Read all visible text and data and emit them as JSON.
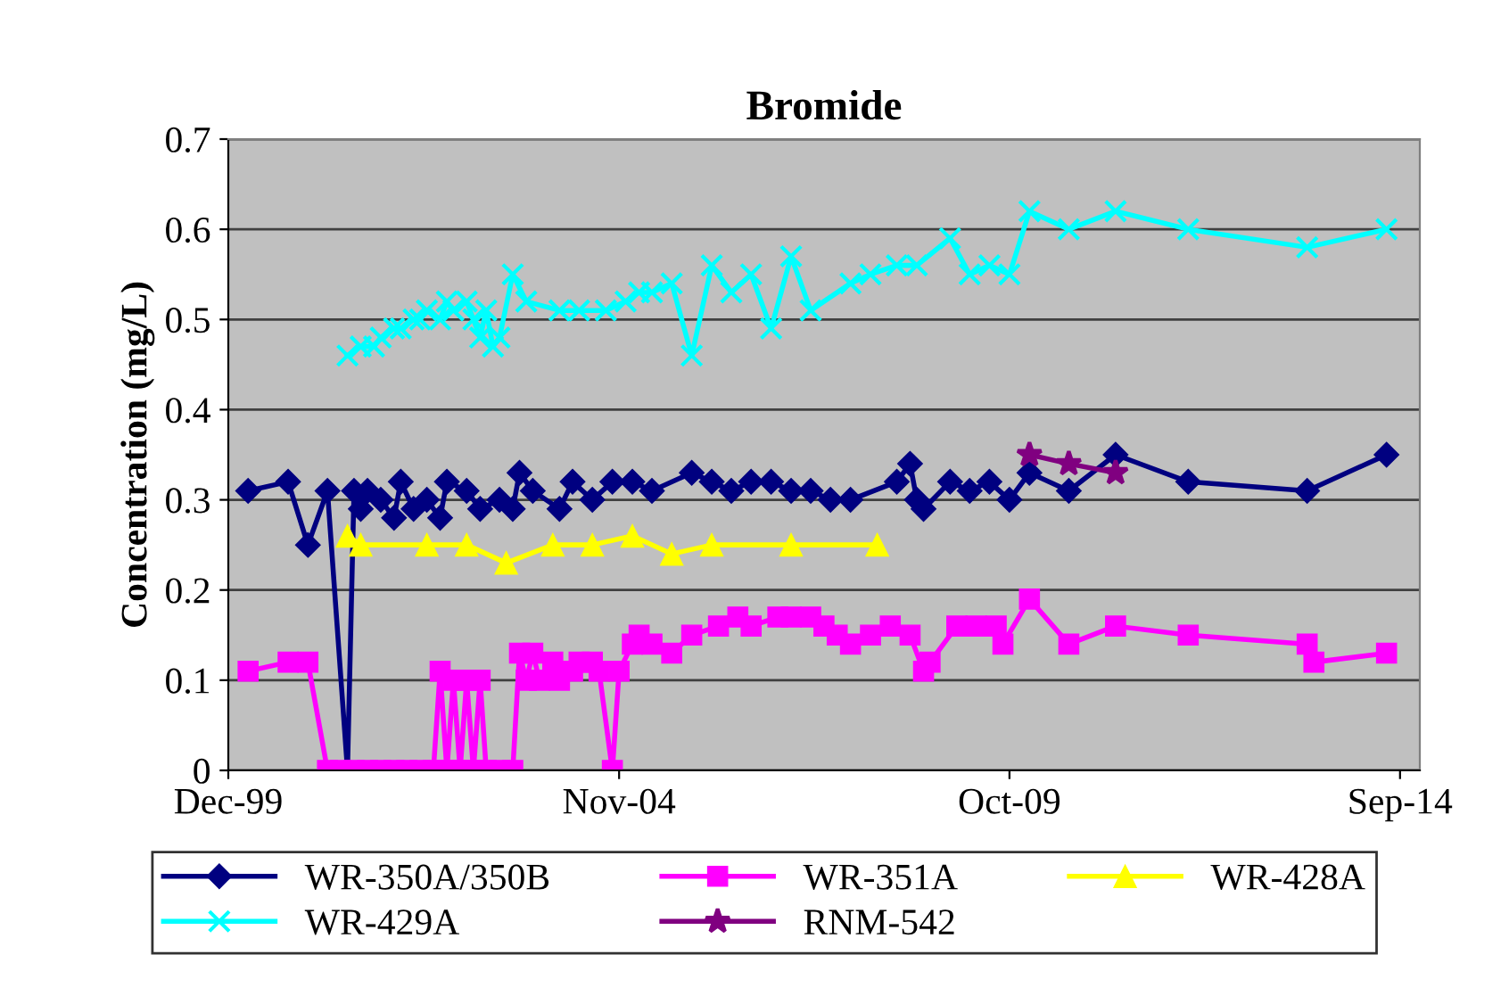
{
  "chart_data": {
    "type": "line",
    "title": "Bromide",
    "ylabel": "Concentration (mg/L)",
    "xlim": [
      "1999-12",
      "2014-12"
    ],
    "xticks": [
      {
        "value": "1999-12",
        "label": "Dec-99"
      },
      {
        "value": "2004-11",
        "label": "Nov-04"
      },
      {
        "value": "2009-10",
        "label": "Oct-09"
      },
      {
        "value": "2014-09",
        "label": "Sep-14"
      }
    ],
    "ylim": [
      0,
      0.7
    ],
    "yticks": [
      0,
      0.1,
      0.2,
      0.3,
      0.4,
      0.5,
      0.6,
      0.7
    ],
    "grid": "y",
    "legend": "bottom",
    "series": [
      {
        "name": "WR-350A/350B",
        "color": "#000080",
        "marker": "diamond",
        "x": [
          "2000-03",
          "2000-09",
          "2000-12",
          "2001-03",
          "2001-06",
          "2001-07",
          "2001-08",
          "2001-09",
          "2001-11",
          "2002-01",
          "2002-02",
          "2002-04",
          "2002-06",
          "2002-08",
          "2002-09",
          "2002-12",
          "2003-02",
          "2003-05",
          "2003-07",
          "2003-08",
          "2003-10",
          "2004-02",
          "2004-04",
          "2004-07",
          "2004-10",
          "2005-01",
          "2005-04",
          "2005-10",
          "2006-01",
          "2006-04",
          "2006-07",
          "2006-10",
          "2007-01",
          "2007-04",
          "2007-07",
          "2007-10",
          "2008-05",
          "2008-07",
          "2008-08",
          "2008-09",
          "2009-01",
          "2009-04",
          "2009-07",
          "2009-10",
          "2010-01",
          "2010-07",
          "2011-02",
          "2012-01",
          "2013-07",
          "2014-07"
        ],
        "values": [
          0.31,
          0.32,
          0.25,
          0.31,
          0,
          0.31,
          0.29,
          0.31,
          0.3,
          0.28,
          0.32,
          0.29,
          0.3,
          0.28,
          0.32,
          0.31,
          0.29,
          0.3,
          0.29,
          0.33,
          0.31,
          0.29,
          0.32,
          0.3,
          0.32,
          0.32,
          0.31,
          0.33,
          0.32,
          0.31,
          0.32,
          0.32,
          0.31,
          0.31,
          0.3,
          0.3,
          0.32,
          0.34,
          0.3,
          0.29,
          0.32,
          0.31,
          0.32,
          0.3,
          0.33,
          0.31,
          0.35,
          0.32,
          0.31,
          0.35
        ]
      },
      {
        "name": "WR-351A",
        "color": "#ff00ff",
        "marker": "square",
        "x": [
          "2000-03",
          "2000-09",
          "2000-12",
          "2001-03",
          "2001-05",
          "2001-07",
          "2001-09",
          "2001-11",
          "2002-01",
          "2002-03",
          "2002-05",
          "2002-07",
          "2002-08",
          "2002-09",
          "2002-10",
          "2002-11",
          "2002-12",
          "2003-01",
          "2003-02",
          "2003-03",
          "2003-05",
          "2003-07",
          "2003-08",
          "2003-09",
          "2003-10",
          "2003-11",
          "2004-01",
          "2004-02",
          "2004-04",
          "2004-05",
          "2004-07",
          "2004-08",
          "2004-10",
          "2004-11",
          "2005-01",
          "2005-02",
          "2005-04",
          "2005-07",
          "2005-10",
          "2006-02",
          "2006-05",
          "2006-07",
          "2006-11",
          "2007-01",
          "2007-04",
          "2007-06",
          "2007-08",
          "2007-10",
          "2008-01",
          "2008-04",
          "2008-07",
          "2008-09",
          "2008-10",
          "2009-02",
          "2009-05",
          "2009-08",
          "2009-09",
          "2010-01",
          "2010-07",
          "2011-02",
          "2012-01",
          "2013-07",
          "2013-08",
          "2014-07"
        ],
        "values": [
          0.11,
          0.12,
          0.12,
          0,
          0,
          0,
          0,
          0,
          0,
          0,
          0,
          0,
          0.11,
          0,
          0.1,
          0,
          0.1,
          0,
          0.1,
          0,
          0,
          0,
          0.13,
          0.1,
          0.13,
          0.1,
          0.12,
          0.1,
          0.11,
          0.12,
          0.12,
          0.11,
          0,
          0.11,
          0.14,
          0.15,
          0.14,
          0.13,
          0.15,
          0.16,
          0.17,
          0.16,
          0.17,
          0.17,
          0.17,
          0.16,
          0.15,
          0.14,
          0.15,
          0.16,
          0.15,
          0.11,
          0.12,
          0.16,
          0.16,
          0.16,
          0.14,
          0.19,
          0.14,
          0.16,
          0.15,
          0.14,
          0.12,
          0.13
        ]
      },
      {
        "name": "WR-428A",
        "color": "#ffff00",
        "marker": "triangle",
        "x": [
          "2001-06",
          "2001-08",
          "2002-06",
          "2002-12",
          "2003-06",
          "2004-01",
          "2004-07",
          "2005-01",
          "2005-07",
          "2006-01",
          "2007-01",
          "2008-02"
        ],
        "values": [
          0.26,
          0.25,
          0.25,
          0.25,
          0.23,
          0.25,
          0.25,
          0.26,
          0.24,
          0.25,
          0.25,
          0.25
        ]
      },
      {
        "name": "WR-429A",
        "color": "#00ffff",
        "marker": "cross",
        "x": [
          "2001-06",
          "2001-08",
          "2001-10",
          "2001-11",
          "2002-01",
          "2002-02",
          "2002-04",
          "2002-05",
          "2002-06",
          "2002-08",
          "2002-09",
          "2002-10",
          "2002-12",
          "2003-01",
          "2003-02",
          "2003-03",
          "2003-04",
          "2003-05",
          "2003-07",
          "2003-09",
          "2004-02",
          "2004-05",
          "2004-09",
          "2004-12",
          "2005-02",
          "2005-04",
          "2005-07",
          "2005-10",
          "2006-01",
          "2006-04",
          "2006-07",
          "2006-10",
          "2007-01",
          "2007-04",
          "2007-10",
          "2008-01",
          "2008-05",
          "2008-08",
          "2009-01",
          "2009-04",
          "2009-07",
          "2009-10",
          "2010-01",
          "2010-07",
          "2011-02",
          "2012-01",
          "2013-07",
          "2014-07"
        ],
        "values": [
          0.46,
          0.47,
          0.47,
          0.48,
          0.49,
          0.49,
          0.5,
          0.5,
          0.51,
          0.5,
          0.52,
          0.51,
          0.52,
          0.5,
          0.48,
          0.51,
          0.47,
          0.48,
          0.55,
          0.52,
          0.51,
          0.51,
          0.51,
          0.52,
          0.53,
          0.53,
          0.54,
          0.46,
          0.56,
          0.53,
          0.55,
          0.49,
          0.57,
          0.51,
          0.54,
          0.55,
          0.56,
          0.56,
          0.59,
          0.55,
          0.56,
          0.55,
          0.62,
          0.6,
          0.62,
          0.6,
          0.58,
          0.6
        ]
      },
      {
        "name": "RNM-542",
        "color": "#800080",
        "marker": "star",
        "x": [
          "2010-01",
          "2010-07",
          "2011-02"
        ],
        "values": [
          0.35,
          0.34,
          0.33
        ]
      }
    ]
  }
}
